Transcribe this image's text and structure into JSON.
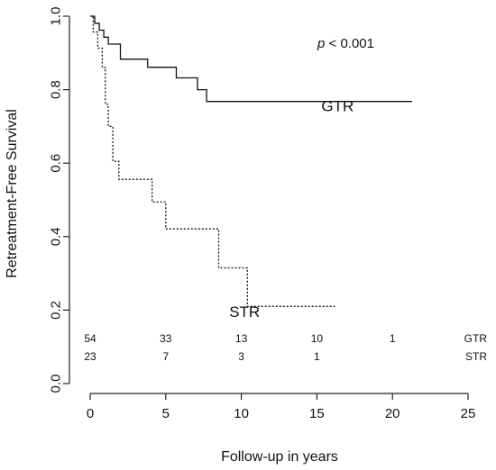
{
  "chart_data": {
    "type": "line",
    "ylabel": "Retreatment-Free Survival",
    "xlabel": "Follow-up in years",
    "xlim": [
      0,
      25
    ],
    "ylim": [
      0,
      1.0
    ],
    "x_ticks": [
      "0",
      "5",
      "10",
      "15",
      "20",
      "25"
    ],
    "y_ticks": [
      "0.0",
      "0.2",
      "0.4",
      "0.6",
      "0.8",
      "1.0"
    ],
    "annotation": {
      "italic": "p",
      "rest": " < 0.001"
    },
    "series": [
      {
        "name": "GTR",
        "label_at": [
          15.3,
          0.755
        ],
        "steps": [
          [
            0,
            1.0
          ],
          [
            0.3,
            1.0
          ],
          [
            0.3,
            0.981
          ],
          [
            0.6,
            0.981
          ],
          [
            0.6,
            0.962
          ],
          [
            0.9,
            0.962
          ],
          [
            0.9,
            0.943
          ],
          [
            1.2,
            0.943
          ],
          [
            1.2,
            0.924
          ],
          [
            2.0,
            0.924
          ],
          [
            2.0,
            0.883
          ],
          [
            3.8,
            0.883
          ],
          [
            3.8,
            0.861
          ],
          [
            5.7,
            0.861
          ],
          [
            5.7,
            0.832
          ],
          [
            7.1,
            0.832
          ],
          [
            7.1,
            0.8
          ],
          [
            7.7,
            0.8
          ],
          [
            7.7,
            0.768
          ],
          [
            21.3,
            0.768
          ]
        ]
      },
      {
        "name": "STR",
        "label_at": [
          9.2,
          0.195
        ],
        "steps": [
          [
            0,
            1.0
          ],
          [
            0.2,
            1.0
          ],
          [
            0.2,
            0.957
          ],
          [
            0.5,
            0.957
          ],
          [
            0.5,
            0.913
          ],
          [
            0.8,
            0.913
          ],
          [
            0.8,
            0.86
          ],
          [
            1.0,
            0.86
          ],
          [
            1.0,
            0.76
          ],
          [
            1.2,
            0.76
          ],
          [
            1.2,
            0.7
          ],
          [
            1.5,
            0.7
          ],
          [
            1.5,
            0.605
          ],
          [
            1.9,
            0.605
          ],
          [
            1.9,
            0.556
          ],
          [
            4.1,
            0.556
          ],
          [
            4.1,
            0.494
          ],
          [
            5.0,
            0.494
          ],
          [
            5.0,
            0.421
          ],
          [
            8.5,
            0.421
          ],
          [
            8.5,
            0.315
          ],
          [
            10.4,
            0.315
          ],
          [
            10.4,
            0.21
          ],
          [
            16.2,
            0.21
          ]
        ]
      }
    ],
    "risk_table": [
      {
        "name": "GTR",
        "x": [
          0,
          5,
          10,
          15,
          20
        ],
        "counts": [
          "54",
          "33",
          "13",
          "10",
          "1"
        ]
      },
      {
        "name": "STR",
        "x": [
          0,
          5,
          10,
          15
        ],
        "counts": [
          "23",
          "7",
          "3",
          "1"
        ]
      }
    ]
  }
}
